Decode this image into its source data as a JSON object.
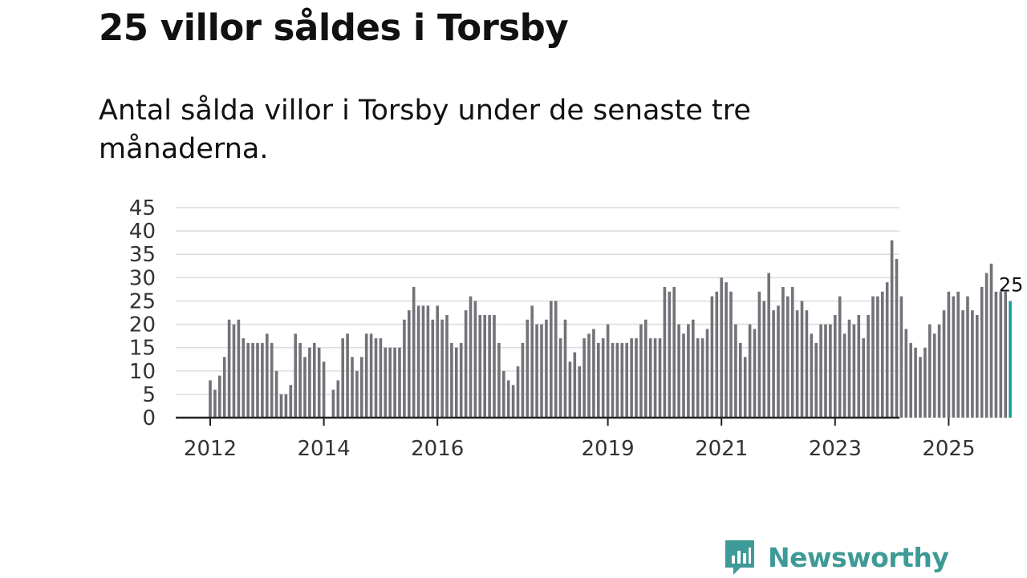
{
  "header": {
    "title": "25 villor såldes i Torsby",
    "subtitle": "Antal sålda villor i Torsby under de senaste tre månaderna."
  },
  "chart_data": {
    "type": "bar",
    "title": "25 villor såldes i Torsby",
    "xlabel": "",
    "ylabel": "",
    "ylim": [
      0,
      45
    ],
    "yticks": [
      0,
      5,
      10,
      15,
      20,
      25,
      30,
      35,
      40,
      45
    ],
    "x_start": "2012-01",
    "x_tick_labels": [
      "2012",
      "2014",
      "2016",
      "2019",
      "2021",
      "2023",
      "2025"
    ],
    "x_tick_months": [
      0,
      24,
      48,
      84,
      108,
      132,
      156
    ],
    "values": [
      8,
      6,
      9,
      13,
      21,
      20,
      21,
      17,
      16,
      16,
      16,
      16,
      18,
      16,
      10,
      5,
      5,
      7,
      18,
      16,
      13,
      15,
      16,
      15,
      12,
      0,
      6,
      8,
      17,
      18,
      13,
      10,
      13,
      18,
      18,
      17,
      17,
      15,
      15,
      15,
      15,
      21,
      23,
      28,
      24,
      24,
      24,
      21,
      24,
      21,
      22,
      16,
      15,
      16,
      23,
      26,
      25,
      22,
      22,
      22,
      22,
      16,
      10,
      8,
      7,
      11,
      16,
      21,
      24,
      20,
      20,
      21,
      25,
      25,
      17,
      21,
      12,
      14,
      11,
      17,
      18,
      19,
      16,
      17,
      20,
      16,
      16,
      16,
      16,
      17,
      17,
      20,
      21,
      17,
      17,
      17,
      28,
      27,
      28,
      20,
      18,
      20,
      21,
      17,
      17,
      19,
      26,
      27,
      30,
      29,
      27,
      20,
      16,
      13,
      20,
      19,
      27,
      25,
      31,
      23,
      24,
      28,
      26,
      28,
      23,
      25,
      23,
      18,
      16,
      20,
      20,
      20,
      22,
      26,
      18,
      21,
      20,
      22,
      17,
      22,
      26,
      26,
      27,
      29,
      38,
      34,
      26,
      19,
      16,
      15,
      13,
      15,
      20,
      18,
      20,
      23,
      27,
      26,
      27,
      23,
      26,
      23,
      22,
      28,
      31,
      33,
      27,
      27,
      27,
      25
    ],
    "highlight_last": true,
    "last_value_label": "25",
    "bar_color": "#737278",
    "highlight_color": "#1a9c96",
    "grid": true
  },
  "branding": {
    "logo_text": "Newsworthy",
    "logo_color": "#3d9a96"
  }
}
